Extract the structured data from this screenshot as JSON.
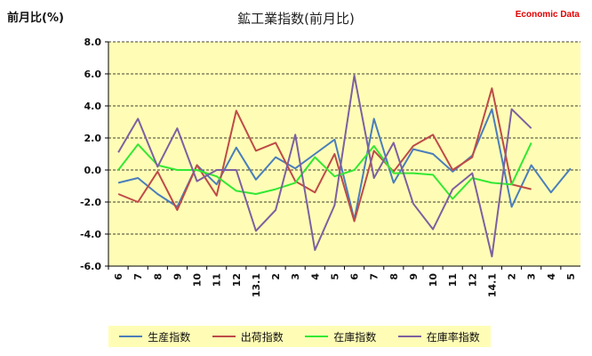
{
  "header": {
    "title": "鉱工業指数(前月比)",
    "ylabel": "前月比(%)",
    "brand": "Economic Data"
  },
  "colors": {
    "plot_background": "#fffdb5",
    "legend_background": "#fffdb5",
    "grid": "#000000"
  },
  "chart_data": {
    "type": "line",
    "title": "鉱工業指数(前月比)",
    "ylabel": "前月比(%)",
    "ylim": [
      -6.0,
      8.0
    ],
    "yticks": [
      8.0,
      6.0,
      4.0,
      2.0,
      0.0,
      -2.0,
      -4.0,
      -6.0
    ],
    "ytick_labels": [
      "8.0",
      "6.0",
      "4.0",
      "2.0",
      "0.0",
      "-2.0",
      "-4.0",
      "-6.0"
    ],
    "grid": "horizontal dashed",
    "legend_position": "bottom",
    "categories": [
      "6",
      "7",
      "8",
      "9",
      "10",
      "11",
      "12",
      "13.1",
      "2",
      "3",
      "4",
      "5",
      "6",
      "7",
      "8",
      "9",
      "10",
      "11",
      "12",
      "14.1",
      "2",
      "3",
      "4",
      "5"
    ],
    "series": [
      {
        "name": "生産指数",
        "color": "#4a7ebb",
        "values": [
          -0.8,
          -0.5,
          -1.5,
          -2.3,
          0.3,
          -0.9,
          1.4,
          -0.6,
          0.8,
          0.1,
          1.0,
          1.9,
          -3.1,
          3.2,
          -0.8,
          1.3,
          1.0,
          -0.1,
          0.9,
          3.8,
          -2.3,
          0.3,
          -1.4,
          0.1
        ]
      },
      {
        "name": "出荷指数",
        "color": "#be4b48",
        "values": [
          -1.5,
          -2.0,
          -0.1,
          -2.5,
          0.3,
          -1.6,
          3.7,
          1.2,
          1.7,
          -0.7,
          -1.4,
          1.0,
          -3.2,
          1.2,
          -0.1,
          1.5,
          2.2,
          0.0,
          0.8,
          5.1,
          -0.9,
          -1.2,
          null,
          null
        ]
      },
      {
        "name": "在庫指数",
        "color": "#33e833",
        "values": [
          0.0,
          1.6,
          0.3,
          0.0,
          0.0,
          -0.4,
          -1.3,
          -1.5,
          -1.2,
          -0.8,
          0.8,
          -0.4,
          0.0,
          1.5,
          -0.2,
          -0.2,
          -0.3,
          -1.8,
          -0.5,
          -0.8,
          -0.9,
          1.7,
          null,
          null
        ]
      },
      {
        "name": "在庫率指数",
        "color": "#7d60a0",
        "values": [
          1.1,
          3.2,
          0.2,
          2.6,
          -0.7,
          0.0,
          0.0,
          -3.8,
          -2.5,
          2.2,
          -5.0,
          -2.2,
          5.9,
          -0.5,
          1.7,
          -2.1,
          -3.7,
          -1.2,
          -0.2,
          -5.4,
          3.8,
          2.6,
          null,
          null
        ]
      }
    ]
  }
}
